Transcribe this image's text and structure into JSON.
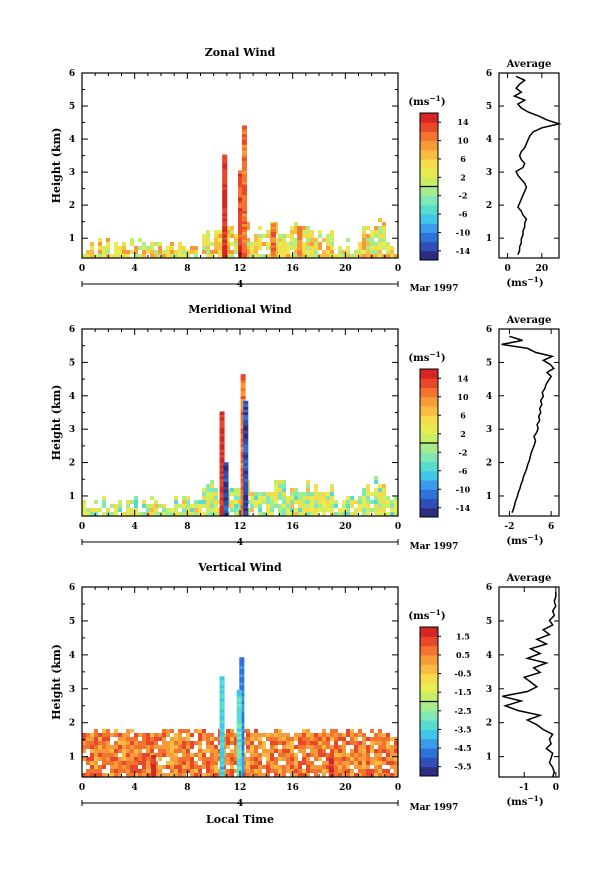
{
  "chart_data": [
    {
      "type": "heatmap",
      "title": "Zonal Wind",
      "ylabel": "Height (km)",
      "xlabel": "",
      "x_ticks": [
        "0",
        "4",
        "8",
        "12",
        "16",
        "20",
        "0"
      ],
      "y_ticks": [
        "1",
        "2",
        "3",
        "4",
        "5",
        "6"
      ],
      "xlim": [
        0,
        24
      ],
      "ylim": [
        0.4,
        6
      ],
      "date_row": {
        "day": "4",
        "label": "Mar 1997"
      },
      "colorbar": {
        "unit": "(ms",
        "unit_sup": "−1",
        "unit_close": ")",
        "ticks": [
          "14",
          "10",
          "6",
          "2",
          "-2",
          "-6",
          "-10",
          "-14"
        ],
        "range": [
          -16,
          16
        ]
      },
      "profile": {
        "title": "Average",
        "xlabel": "(ms",
        "xlabel_sup": "−1",
        "xlabel_close": ")",
        "x_ticks": [
          "0",
          "20"
        ],
        "xlim": [
          -5,
          30
        ],
        "x_values": [
          6,
          7,
          7,
          8,
          8,
          9,
          9,
          10,
          10,
          11,
          9,
          8,
          6,
          7,
          8,
          9,
          10,
          11,
          10,
          8,
          6,
          5,
          9,
          10,
          8,
          7,
          8,
          10,
          11,
          12,
          13,
          15,
          20,
          30,
          23,
          18,
          12,
          8,
          6,
          10,
          4,
          8,
          5,
          7,
          10,
          5
        ],
        "y_step": 0.12,
        "y_start": 0.5
      }
    },
    {
      "type": "heatmap",
      "title": "Meridional Wind",
      "ylabel": "Height (km)",
      "xlabel": "",
      "x_ticks": [
        "0",
        "4",
        "8",
        "12",
        "16",
        "20",
        "0"
      ],
      "y_ticks": [
        "1",
        "2",
        "3",
        "4",
        "5",
        "6"
      ],
      "xlim": [
        0,
        24
      ],
      "ylim": [
        0.4,
        6
      ],
      "date_row": {
        "day": "4",
        "label": "Mar 1997"
      },
      "colorbar": {
        "unit": "(ms",
        "unit_sup": "−1",
        "unit_close": ")",
        "ticks": [
          "14",
          "10",
          "6",
          "2",
          "-2",
          "-6",
          "-10",
          "-14"
        ],
        "range": [
          -16,
          16
        ]
      },
      "profile": {
        "title": "Average",
        "xlabel": "(ms",
        "xlabel_sup": "−1",
        "xlabel_close": ")",
        "x_ticks": [
          "-2",
          "6"
        ],
        "xlim": [
          -4,
          7.5
        ],
        "x_values": [
          -1.5,
          -1.2,
          -1,
          -0.8,
          -0.5,
          -0.3,
          0,
          0.2,
          0.5,
          0.7,
          1,
          1.3,
          1.5,
          1.8,
          2,
          2.2,
          2.5,
          2.8,
          3,
          2.7,
          3.2,
          3.5,
          3.3,
          3.8,
          3.6,
          4,
          3.8,
          4.2,
          4,
          4.5,
          4.3,
          4.8,
          5,
          5.5,
          6,
          5.2,
          6.5,
          5.8,
          4.5,
          6.2,
          3,
          1.5,
          -3.5,
          0.5,
          -2
        ],
        "y_step": 0.12,
        "y_start": 0.5
      }
    },
    {
      "type": "heatmap",
      "title": "Vertical Wind",
      "ylabel": "Height (km)",
      "xlabel": "Local Time",
      "x_ticks": [
        "0",
        "4",
        "8",
        "12",
        "16",
        "20",
        "0"
      ],
      "y_ticks": [
        "1",
        "2",
        "3",
        "4",
        "5",
        "6"
      ],
      "xlim": [
        0,
        24
      ],
      "ylim": [
        0.4,
        6
      ],
      "date_row": {
        "day": "4",
        "label": "Mar 1997"
      },
      "colorbar": {
        "unit": "(ms",
        "unit_sup": "−1",
        "unit_close": ")",
        "ticks": [
          "1.5",
          "0.5",
          "-0.5",
          "-1.5",
          "-2.5",
          "-3.5",
          "-4.5",
          "-5.5"
        ],
        "range": [
          -6,
          2
        ]
      },
      "profile": {
        "title": "Average",
        "xlabel": "(ms",
        "xlabel_sup": "−1",
        "xlabel_close": ")",
        "x_ticks": [
          "-1",
          "0"
        ],
        "xlim": [
          -1.8,
          0.1
        ],
        "x_values": [
          -0.1,
          -0.05,
          -0.1,
          -0.2,
          -0.15,
          -0.1,
          -0.3,
          -0.15,
          -0.2,
          -0.1,
          -0.4,
          -0.6,
          -0.9,
          -0.5,
          -1.2,
          -1.6,
          -1.1,
          -1.7,
          -0.9,
          -0.6,
          -0.8,
          -1.0,
          -0.5,
          -0.7,
          -0.3,
          -0.9,
          -0.5,
          -0.8,
          -0.3,
          -0.6,
          -0.2,
          -0.4,
          -0.1,
          -0.2,
          -0.05,
          -0.1,
          0,
          -0.05,
          0,
          0
        ],
        "y_step": 0.14,
        "y_start": 0.4
      }
    }
  ]
}
